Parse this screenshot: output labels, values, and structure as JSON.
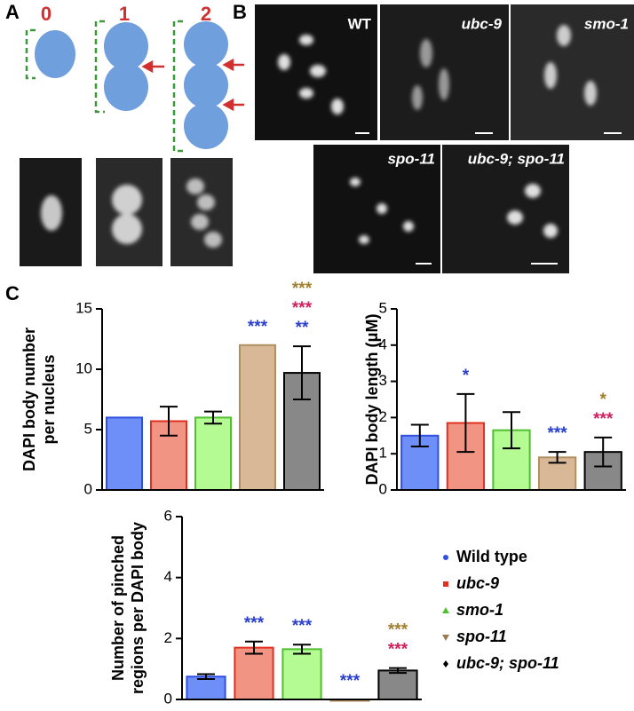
{
  "panels": {
    "A": {
      "label": "A",
      "stages": [
        "0",
        "1",
        "2"
      ]
    },
    "B": {
      "label": "B",
      "images": [
        "WT",
        "ubc-9",
        "smo-1",
        "spo-11",
        "ubc-9; spo-11"
      ]
    },
    "C": {
      "label": "C"
    }
  },
  "legend": [
    {
      "name": "Wild type",
      "color": "#2f4fe0",
      "marker": "circle",
      "italic": false
    },
    {
      "name": "ubc-9",
      "color": "#e03020",
      "marker": "square",
      "italic": true
    },
    {
      "name": "smo-1",
      "color": "#50c030",
      "marker": "triangle-up",
      "italic": true
    },
    {
      "name": "spo-11",
      "color": "#9a7a50",
      "marker": "triangle-down",
      "italic": true
    },
    {
      "name": "ubc-9; spo-11",
      "color": "#000000",
      "marker": "diamond",
      "italic": true
    }
  ],
  "chart_data": [
    {
      "type": "bar",
      "ylabel": [
        "DAPI body number",
        "per nucleus"
      ],
      "categories": [
        null,
        null,
        null,
        null,
        null
      ],
      "values": [
        6,
        5.7,
        6,
        12,
        9.7
      ],
      "errors": [
        0,
        1.2,
        0.5,
        0,
        2.2
      ],
      "colors": [
        "#6f8ff8",
        "#f29484",
        "#b4fb94",
        "#d8b896",
        "#888888"
      ],
      "edgecolors": [
        "#2f4fe0",
        "#e03020",
        "#50c030",
        "#b09060",
        "#000000"
      ],
      "ylim": [
        0,
        15
      ],
      "yticks": [
        0,
        5,
        10,
        15
      ],
      "annotations": [
        [],
        [],
        [],
        [
          {
            "text": "***",
            "color": "#2a3fd0"
          }
        ],
        [
          {
            "text": "***",
            "color": "#a08030"
          },
          {
            "text": "***",
            "color": "#d0205a"
          },
          {
            "text": "**",
            "color": "#2a3fd0"
          }
        ]
      ]
    },
    {
      "type": "bar",
      "ylabel": [
        "DAPI body length (μM)"
      ],
      "categories": [
        null,
        null,
        null,
        null,
        null
      ],
      "values": [
        1.5,
        1.85,
        1.65,
        0.9,
        1.05
      ],
      "errors": [
        0.3,
        0.8,
        0.5,
        0.15,
        0.4
      ],
      "colors": [
        "#6f8ff8",
        "#f29484",
        "#b4fb94",
        "#d8b896",
        "#888888"
      ],
      "edgecolors": [
        "#2f4fe0",
        "#e03020",
        "#50c030",
        "#b09060",
        "#000000"
      ],
      "ylim": [
        0,
        5
      ],
      "yticks": [
        0,
        1,
        2,
        3,
        4,
        5
      ],
      "annotations": [
        [],
        [
          {
            "text": "*",
            "color": "#2a3fd0"
          }
        ],
        [],
        [
          {
            "text": "***",
            "color": "#2a3fd0"
          }
        ],
        [
          {
            "text": "*",
            "color": "#a08030"
          },
          {
            "text": "***",
            "color": "#d0205a"
          }
        ]
      ]
    },
    {
      "type": "bar",
      "ylabel": [
        "Number of pinched",
        "regions per DAPI body"
      ],
      "categories": [
        null,
        null,
        null,
        null,
        null
      ],
      "values": [
        0.75,
        1.7,
        1.65,
        0,
        0.95
      ],
      "errors": [
        0.08,
        0.2,
        0.15,
        0,
        0.08
      ],
      "colors": [
        "#6f8ff8",
        "#f29484",
        "#b4fb94",
        "#d8b896",
        "#888888"
      ],
      "edgecolors": [
        "#2f4fe0",
        "#e03020",
        "#50c030",
        "#b09060",
        "#000000"
      ],
      "ylim": [
        0,
        6
      ],
      "yticks": [
        0,
        2,
        4,
        6
      ],
      "annotations": [
        [],
        [
          {
            "text": "***",
            "color": "#2a3fd0"
          }
        ],
        [
          {
            "text": "***",
            "color": "#2a3fd0"
          }
        ],
        [
          {
            "text": "***",
            "color": "#2a3fd0"
          }
        ],
        [
          {
            "text": "***",
            "color": "#a08030"
          },
          {
            "text": "***",
            "color": "#d0205a"
          }
        ]
      ]
    }
  ]
}
